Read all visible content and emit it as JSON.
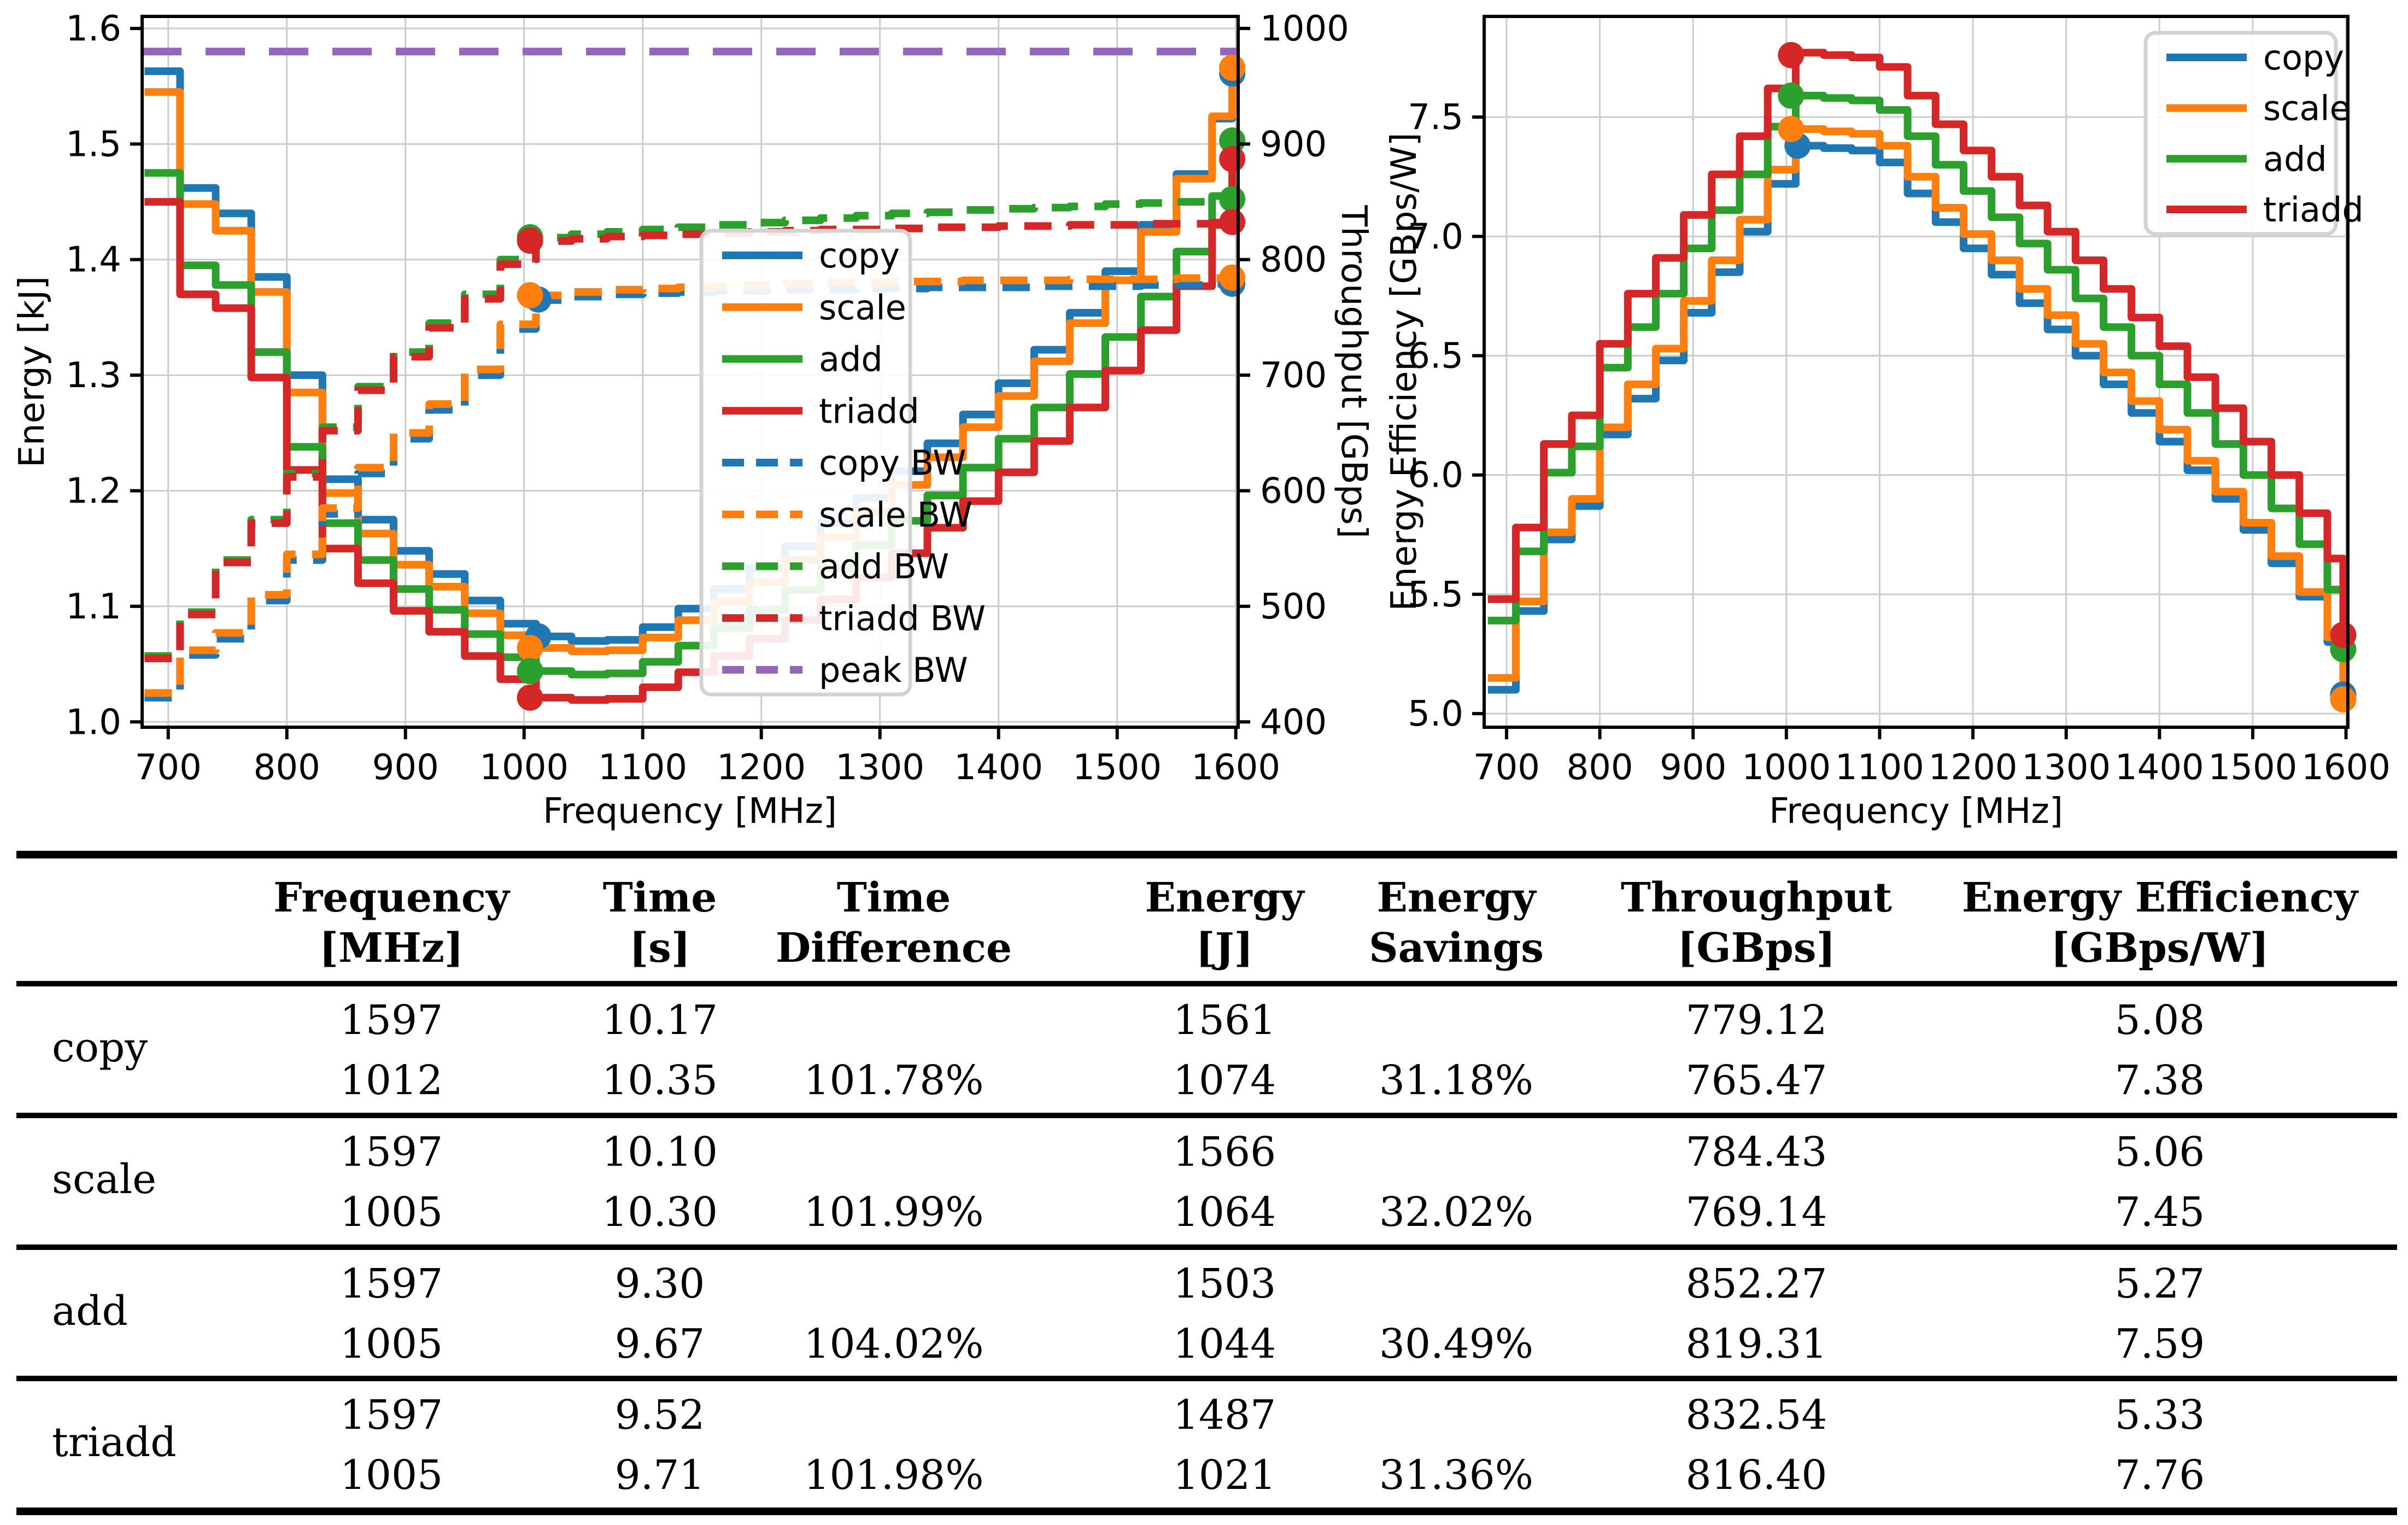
{
  "colors": {
    "copy": "#1f77b4",
    "scale": "#ff7f0e",
    "add": "#2ca02c",
    "triadd": "#d62728",
    "peak": "#9467bd",
    "grid": "#cccccc",
    "spine": "#000000",
    "legend_border": "#d3d3d3"
  },
  "chart_data": [
    {
      "id": "energy-throughput",
      "type": "line",
      "xlabel": "Frequency [MHz]",
      "ylabel": "Energy [kJ]",
      "ylabel_right": "Throughput [GBps]",
      "xlim": [
        678,
        1602
      ],
      "ylim": [
        0.9954,
        1.6104
      ],
      "ylim_right": [
        395.4,
        1010.4
      ],
      "grid": true,
      "legend_position": "center-right",
      "x_ticks": [
        700,
        800,
        900,
        1000,
        1100,
        1200,
        1300,
        1400,
        1500,
        1600
      ],
      "y_ticks": [
        "1.0",
        "1.1",
        "1.2",
        "1.3",
        "1.4",
        "1.5",
        "1.6"
      ],
      "y_ticks_right": [
        "400",
        "500",
        "600",
        "700",
        "800",
        "900",
        "1000"
      ],
      "frequencies": [
        680,
        710,
        740,
        770,
        800,
        830,
        860,
        890,
        920,
        950,
        980,
        1010,
        1040,
        1070,
        1100,
        1130,
        1160,
        1190,
        1220,
        1250,
        1280,
        1310,
        1340,
        1370,
        1400,
        1430,
        1460,
        1490,
        1520,
        1550,
        1580,
        1597
      ],
      "series": [
        {
          "name": "copy",
          "axis": "left",
          "style": "solid",
          "color": "copy",
          "values": [
            1.563,
            1.462,
            1.44,
            1.385,
            1.3,
            1.21,
            1.175,
            1.148,
            1.128,
            1.105,
            1.085,
            1.074,
            1.07,
            1.071,
            1.082,
            1.098,
            1.115,
            1.133,
            1.152,
            1.172,
            1.194,
            1.217,
            1.241,
            1.266,
            1.293,
            1.322,
            1.354,
            1.39,
            1.43,
            1.474,
            1.522,
            1.561
          ]
        },
        {
          "name": "scale",
          "axis": "left",
          "style": "solid",
          "color": "scale",
          "values": [
            1.545,
            1.448,
            1.425,
            1.372,
            1.285,
            1.198,
            1.163,
            1.136,
            1.117,
            1.094,
            1.075,
            1.064,
            1.061,
            1.062,
            1.073,
            1.088,
            1.104,
            1.121,
            1.14,
            1.16,
            1.182,
            1.205,
            1.229,
            1.255,
            1.282,
            1.312,
            1.345,
            1.382,
            1.424,
            1.47,
            1.524,
            1.566
          ]
        },
        {
          "name": "add",
          "axis": "left",
          "style": "solid",
          "color": "add",
          "values": [
            1.475,
            1.395,
            1.378,
            1.32,
            1.238,
            1.172,
            1.14,
            1.115,
            1.097,
            1.076,
            1.056,
            1.044,
            1.041,
            1.042,
            1.052,
            1.066,
            1.081,
            1.097,
            1.114,
            1.133,
            1.153,
            1.174,
            1.196,
            1.22,
            1.245,
            1.272,
            1.301,
            1.333,
            1.368,
            1.407,
            1.455,
            1.503
          ]
        },
        {
          "name": "triadd",
          "axis": "left",
          "style": "solid",
          "color": "triadd",
          "values": [
            1.45,
            1.37,
            1.358,
            1.298,
            1.218,
            1.15,
            1.12,
            1.096,
            1.078,
            1.057,
            1.037,
            1.021,
            1.019,
            1.02,
            1.03,
            1.043,
            1.057,
            1.072,
            1.088,
            1.106,
            1.125,
            1.146,
            1.168,
            1.191,
            1.216,
            1.243,
            1.272,
            1.304,
            1.339,
            1.377,
            1.43,
            1.487
          ]
        },
        {
          "name": "copy BW",
          "axis": "right",
          "style": "dashed",
          "color": "copy",
          "values": [
            421,
            458,
            472,
            505,
            540,
            580,
            615,
            645,
            670,
            700,
            740,
            765,
            768,
            770,
            771,
            772,
            773,
            773,
            774,
            774,
            775,
            775,
            776,
            776,
            776,
            777,
            777,
            777,
            778,
            778,
            779,
            779
          ]
        },
        {
          "name": "scale BW",
          "axis": "right",
          "style": "dashed",
          "color": "scale",
          "values": [
            425,
            462,
            477,
            510,
            545,
            585,
            620,
            650,
            675,
            705,
            744,
            769,
            772,
            774,
            775,
            776,
            777,
            778,
            779,
            780,
            780,
            781,
            781,
            782,
            782,
            782,
            783,
            783,
            783,
            784,
            784,
            784
          ]
        },
        {
          "name": "add BW",
          "axis": "right",
          "style": "dashed",
          "color": "add",
          "values": [
            457,
            495,
            540,
            575,
            615,
            655,
            690,
            720,
            745,
            770,
            800,
            819,
            822,
            824,
            826,
            828,
            830,
            832,
            834,
            836,
            838,
            840,
            841,
            843,
            844,
            845,
            846,
            848,
            849,
            850,
            851,
            852
          ]
        },
        {
          "name": "triadd BW",
          "axis": "right",
          "style": "dashed",
          "color": "triadd",
          "values": [
            455,
            493,
            538,
            572,
            612,
            652,
            687,
            716,
            741,
            766,
            796,
            816,
            818,
            820,
            821,
            822,
            823,
            824,
            825,
            826,
            826,
            827,
            828,
            828,
            829,
            829,
            830,
            830,
            831,
            831,
            832,
            833
          ]
        },
        {
          "name": "peak BW",
          "axis": "right",
          "style": "dashed-long",
          "color": "peak",
          "x": [
            678,
            1602
          ],
          "values": [
            980,
            980
          ]
        }
      ],
      "markers": [
        {
          "series": 0,
          "x": 1012,
          "y": 1.074
        },
        {
          "series": 1,
          "x": 1005,
          "y": 1.064
        },
        {
          "series": 2,
          "x": 1005,
          "y": 1.044
        },
        {
          "series": 3,
          "x": 1005,
          "y": 1.021
        },
        {
          "series": 0,
          "x": 1597,
          "y": 1.561
        },
        {
          "series": 1,
          "x": 1597,
          "y": 1.566
        },
        {
          "series": 2,
          "x": 1597,
          "y": 1.503
        },
        {
          "series": 3,
          "x": 1597,
          "y": 1.487
        },
        {
          "series": 4,
          "x": 1012,
          "y": 765.47
        },
        {
          "series": 5,
          "x": 1005,
          "y": 769.14
        },
        {
          "series": 6,
          "x": 1005,
          "y": 819.31
        },
        {
          "series": 7,
          "x": 1005,
          "y": 816.4
        },
        {
          "series": 4,
          "x": 1597,
          "y": 779.12
        },
        {
          "series": 5,
          "x": 1597,
          "y": 784.43
        },
        {
          "series": 6,
          "x": 1597,
          "y": 852.27
        },
        {
          "series": 7,
          "x": 1597,
          "y": 832.54
        }
      ]
    },
    {
      "id": "energy-efficiency",
      "type": "line",
      "xlabel": "Frequency [MHz]",
      "ylabel": "Energy Efficiency [GBps/W]",
      "xlim": [
        676,
        1602
      ],
      "ylim": [
        4.943,
        7.922
      ],
      "grid": true,
      "legend_position": "top-right",
      "x_ticks": [
        700,
        800,
        900,
        1000,
        1100,
        1200,
        1300,
        1400,
        1500,
        1600
      ],
      "y_ticks": [
        "5.0",
        "5.5",
        "6.0",
        "6.5",
        "7.0",
        "7.5"
      ],
      "frequencies": [
        680,
        710,
        740,
        770,
        800,
        830,
        860,
        890,
        920,
        950,
        980,
        1010,
        1040,
        1070,
        1100,
        1130,
        1160,
        1190,
        1220,
        1250,
        1280,
        1310,
        1340,
        1370,
        1400,
        1430,
        1460,
        1490,
        1520,
        1550,
        1580,
        1597
      ],
      "series": [
        {
          "name": "copy",
          "axis": "left",
          "style": "solid",
          "color": "copy",
          "values": [
            5.1,
            5.43,
            5.73,
            5.87,
            6.17,
            6.32,
            6.48,
            6.68,
            6.85,
            7.02,
            7.22,
            7.38,
            7.37,
            7.36,
            7.31,
            7.18,
            7.06,
            6.95,
            6.84,
            6.72,
            6.61,
            6.5,
            6.38,
            6.26,
            6.14,
            6.02,
            5.9,
            5.77,
            5.63,
            5.49,
            5.3,
            5.08
          ]
        },
        {
          "name": "scale",
          "axis": "left",
          "style": "solid",
          "color": "scale",
          "values": [
            5.15,
            5.47,
            5.76,
            5.9,
            6.2,
            6.38,
            6.53,
            6.73,
            6.9,
            7.07,
            7.28,
            7.45,
            7.44,
            7.43,
            7.38,
            7.25,
            7.12,
            7.01,
            6.9,
            6.78,
            6.67,
            6.55,
            6.43,
            6.31,
            6.19,
            6.06,
            5.93,
            5.8,
            5.66,
            5.51,
            5.32,
            5.06
          ]
        },
        {
          "name": "add",
          "axis": "left",
          "style": "solid",
          "color": "add",
          "values": [
            5.39,
            5.68,
            6.01,
            6.12,
            6.45,
            6.62,
            6.76,
            6.95,
            7.11,
            7.26,
            7.46,
            7.59,
            7.58,
            7.57,
            7.53,
            7.42,
            7.3,
            7.19,
            7.08,
            6.97,
            6.86,
            6.74,
            6.62,
            6.5,
            6.38,
            6.26,
            6.13,
            6.0,
            5.86,
            5.71,
            5.52,
            5.27
          ]
        },
        {
          "name": "triadd",
          "axis": "left",
          "style": "solid",
          "color": "triadd",
          "values": [
            5.48,
            5.78,
            6.13,
            6.25,
            6.55,
            6.76,
            6.91,
            7.09,
            7.26,
            7.42,
            7.62,
            7.77,
            7.76,
            7.75,
            7.71,
            7.59,
            7.47,
            7.36,
            7.25,
            7.13,
            7.02,
            6.9,
            6.78,
            6.66,
            6.54,
            6.41,
            6.28,
            6.14,
            6.0,
            5.84,
            5.65,
            5.33
          ]
        }
      ],
      "markers": [
        {
          "series": 0,
          "x": 1012,
          "y": 7.38
        },
        {
          "series": 1,
          "x": 1005,
          "y": 7.45
        },
        {
          "series": 2,
          "x": 1005,
          "y": 7.59
        },
        {
          "series": 3,
          "x": 1005,
          "y": 7.76
        },
        {
          "series": 0,
          "x": 1597,
          "y": 5.08
        },
        {
          "series": 1,
          "x": 1597,
          "y": 5.06
        },
        {
          "series": 2,
          "x": 1597,
          "y": 5.27
        },
        {
          "series": 3,
          "x": 1597,
          "y": 5.33
        }
      ]
    }
  ],
  "table": {
    "columns": [
      {
        "line1": "",
        "line2": ""
      },
      {
        "line1": "Frequency",
        "line2": "[MHz]"
      },
      {
        "line1": "Time",
        "line2": "[s]"
      },
      {
        "line1": "Time",
        "line2": "Difference"
      },
      {
        "line1": "Energy",
        "line2": "[J]"
      },
      {
        "line1": "Energy",
        "line2": "Savings"
      },
      {
        "line1": "Throughput",
        "line2": "[GBps]"
      },
      {
        "line1": "Energy Efficiency",
        "line2": "[GBps/W]"
      }
    ],
    "groups": [
      {
        "label": "copy",
        "rows": [
          [
            "1597",
            "10.17",
            "",
            "1561",
            "",
            "779.12",
            "5.08"
          ],
          [
            "1012",
            "10.35",
            "101.78%",
            "1074",
            "31.18%",
            "765.47",
            "7.38"
          ]
        ]
      },
      {
        "label": "scale",
        "rows": [
          [
            "1597",
            "10.10",
            "",
            "1566",
            "",
            "784.43",
            "5.06"
          ],
          [
            "1005",
            "10.30",
            "101.99%",
            "1064",
            "32.02%",
            "769.14",
            "7.45"
          ]
        ]
      },
      {
        "label": "add",
        "rows": [
          [
            "1597",
            "9.30",
            "",
            "1503",
            "",
            "852.27",
            "5.27"
          ],
          [
            "1005",
            "9.67",
            "104.02%",
            "1044",
            "30.49%",
            "819.31",
            "7.59"
          ]
        ]
      },
      {
        "label": "triadd",
        "rows": [
          [
            "1597",
            "9.52",
            "",
            "1487",
            "",
            "832.54",
            "5.33"
          ],
          [
            "1005",
            "9.71",
            "101.98%",
            "1021",
            "31.36%",
            "816.40",
            "7.76"
          ]
        ]
      }
    ]
  }
}
